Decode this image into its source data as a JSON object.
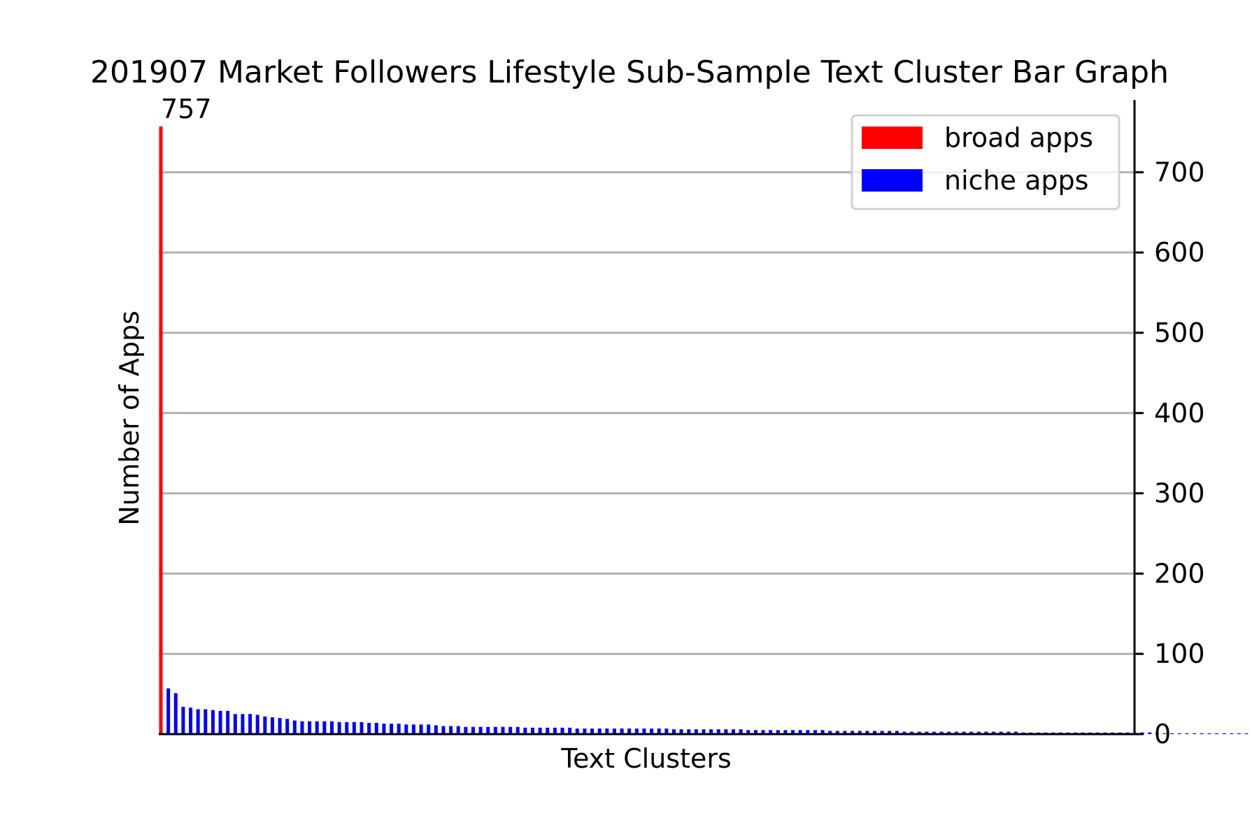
{
  "chart_data": {
    "type": "bar",
    "title": "201907 Market Followers Lifestyle Sub-Sample Text Cluster Bar Graph",
    "xlabel": "Text Clusters",
    "ylabel": "Number of Apps",
    "ylim": [
      0,
      790
    ],
    "yticks": [
      0,
      100,
      200,
      300,
      400,
      500,
      600,
      700
    ],
    "grid": true,
    "yaxis_position": "right",
    "legend_position": "top-right",
    "colors": {
      "broad": "#ff0000",
      "niche": "#0000ff",
      "grid": "#b0b0b0"
    },
    "series": [
      {
        "name": "broad apps",
        "color": "#ff0000",
        "values": [
          757
        ]
      },
      {
        "name": "niche apps",
        "color": "#0000ff",
        "values": [
          57,
          51,
          34,
          33,
          31,
          31,
          30,
          29,
          29,
          25,
          25,
          25,
          24,
          22,
          21,
          20,
          19,
          17,
          16,
          16,
          16,
          16,
          16,
          15,
          15,
          15,
          15,
          14,
          14,
          13,
          13,
          13,
          12,
          12,
          12,
          12,
          11,
          10,
          10,
          10,
          9,
          9,
          9,
          9,
          9,
          9,
          9,
          9,
          8,
          8,
          8,
          8,
          8,
          8,
          8,
          7,
          7,
          7,
          7,
          7,
          7,
          7,
          7,
          7,
          7,
          7,
          7,
          7,
          6,
          6,
          6,
          6,
          6,
          6,
          6,
          6,
          6,
          6,
          5,
          5,
          5,
          5,
          5,
          5,
          5,
          5,
          5,
          5,
          5,
          4,
          4,
          4,
          4,
          4,
          4,
          4,
          4,
          4,
          4,
          3,
          3,
          3,
          3,
          3,
          3,
          3,
          3,
          3,
          3,
          3,
          3,
          3,
          3,
          3,
          3,
          2,
          2,
          2,
          2,
          2,
          2,
          2,
          2,
          2,
          2,
          2,
          2,
          2,
          2,
          2,
          2,
          2,
          2,
          1,
          1,
          1,
          1,
          1,
          1,
          1,
          1,
          1,
          1,
          1,
          1,
          1
        ]
      }
    ],
    "data_labels": [
      {
        "series": "broad apps",
        "index": 0,
        "text": "757"
      }
    ]
  }
}
